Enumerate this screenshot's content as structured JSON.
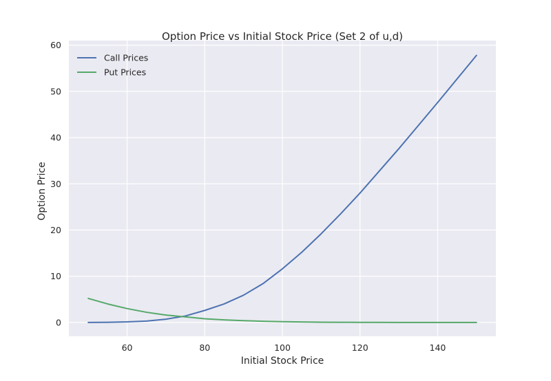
{
  "chart_data": {
    "type": "line",
    "title": "Option Price vs Initial Stock Price (Set 2 of u,d)",
    "xlabel": "Initial Stock Price",
    "ylabel": "Option Price",
    "xlim": [
      45,
      155
    ],
    "ylim": [
      -3,
      61
    ],
    "xticks": [
      60,
      80,
      100,
      120,
      140
    ],
    "yticks": [
      0,
      10,
      20,
      30,
      40,
      50,
      60
    ],
    "grid": true,
    "legend_position": "top-left",
    "background": "#eaeaf2",
    "x": [
      50,
      55,
      60,
      65,
      70,
      75,
      80,
      85,
      90,
      95,
      100,
      105,
      110,
      115,
      120,
      125,
      130,
      135,
      140,
      145,
      150
    ],
    "series": [
      {
        "name": "Call Prices",
        "color": "#4c72b0",
        "values": [
          0.0,
          0.04,
          0.12,
          0.3,
          0.7,
          1.4,
          2.6,
          4.0,
          5.9,
          8.4,
          11.6,
          15.2,
          19.2,
          23.5,
          28.0,
          32.8,
          37.6,
          42.6,
          47.6,
          52.7,
          57.8
        ]
      },
      {
        "name": "Put Prices",
        "color": "#55a868",
        "values": [
          5.2,
          4.0,
          3.0,
          2.2,
          1.6,
          1.2,
          0.8,
          0.55,
          0.38,
          0.25,
          0.16,
          0.1,
          0.06,
          0.04,
          0.02,
          0.01,
          0.0,
          0.0,
          0.0,
          0.0,
          0.0
        ]
      }
    ]
  }
}
